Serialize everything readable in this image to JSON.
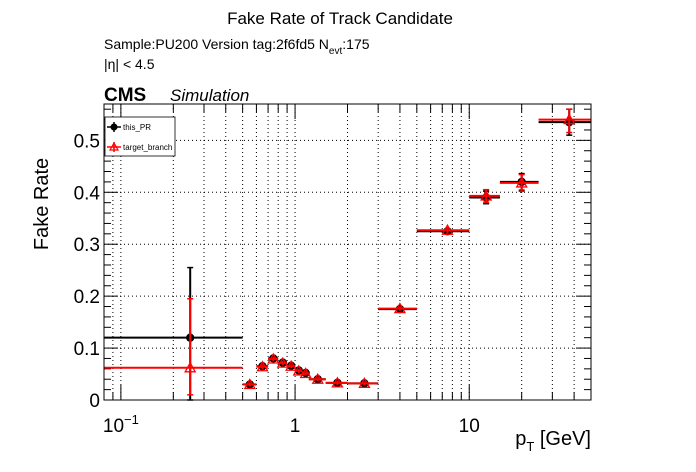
{
  "header": {
    "title": "Fake Rate of Track Candidate",
    "sample_line": "Sample:PU200   Version tag:2f6fd5  N",
    "nevt_sub": "evt",
    "nevt_value": ":175",
    "eta_cut": "|η| < 4.5",
    "cms": "CMS",
    "simulation": "Simulation"
  },
  "chart_data": {
    "type": "scatter",
    "xlabel": "p",
    "xlabel_sub": "T",
    "xlabel_unit": " [GeV]",
    "ylabel": "Fake Rate",
    "xscale": "log",
    "xlim": [
      0.08,
      50
    ],
    "ylim": [
      0,
      0.57
    ],
    "grid": true,
    "legend_position": "top-left",
    "xticks": [
      {
        "value": 0.1,
        "base": "10",
        "exp": "−1"
      },
      {
        "value": 1,
        "base": "1",
        "exp": ""
      },
      {
        "value": 10,
        "base": "10",
        "exp": ""
      }
    ],
    "yticks": [
      {
        "value": 0,
        "label": "0"
      },
      {
        "value": 0.1,
        "label": "0.1"
      },
      {
        "value": 0.2,
        "label": "0.2"
      },
      {
        "value": 0.3,
        "label": "0.3"
      },
      {
        "value": 0.4,
        "label": "0.4"
      },
      {
        "value": 0.5,
        "label": "0.5"
      }
    ],
    "series": [
      {
        "name": "this_PR",
        "color": "#000000",
        "marker": "circle",
        "points": [
          {
            "x": 0.25,
            "xlo": 0.0,
            "xhi": 0.5,
            "y": 0.12,
            "ylo": 0.0,
            "yhi": 0.255
          },
          {
            "x": 0.55,
            "xlo": 0.5,
            "xhi": 0.6,
            "y": 0.03,
            "ylo": 0.026,
            "yhi": 0.034
          },
          {
            "x": 0.65,
            "xlo": 0.6,
            "xhi": 0.7,
            "y": 0.065,
            "ylo": 0.06,
            "yhi": 0.07
          },
          {
            "x": 0.75,
            "xlo": 0.7,
            "xhi": 0.8,
            "y": 0.08,
            "ylo": 0.076,
            "yhi": 0.084
          },
          {
            "x": 0.85,
            "xlo": 0.8,
            "xhi": 0.9,
            "y": 0.072,
            "ylo": 0.068,
            "yhi": 0.076
          },
          {
            "x": 0.95,
            "xlo": 0.9,
            "xhi": 1.0,
            "y": 0.066,
            "ylo": 0.062,
            "yhi": 0.07
          },
          {
            "x": 1.05,
            "xlo": 1.0,
            "xhi": 1.1,
            "y": 0.057,
            "ylo": 0.053,
            "yhi": 0.061
          },
          {
            "x": 1.15,
            "xlo": 1.1,
            "xhi": 1.2,
            "y": 0.052,
            "ylo": 0.048,
            "yhi": 0.056
          },
          {
            "x": 1.35,
            "xlo": 1.2,
            "xhi": 1.5,
            "y": 0.04,
            "ylo": 0.036,
            "yhi": 0.044
          },
          {
            "x": 1.75,
            "xlo": 1.5,
            "xhi": 2.0,
            "y": 0.033,
            "ylo": 0.029,
            "yhi": 0.037
          },
          {
            "x": 2.5,
            "xlo": 2.0,
            "xhi": 3.0,
            "y": 0.032,
            "ylo": 0.028,
            "yhi": 0.036
          },
          {
            "x": 4.0,
            "xlo": 3.0,
            "xhi": 5.0,
            "y": 0.175,
            "ylo": 0.171,
            "yhi": 0.179
          },
          {
            "x": 7.5,
            "xlo": 5.0,
            "xhi": 10.0,
            "y": 0.325,
            "ylo": 0.319,
            "yhi": 0.331
          },
          {
            "x": 12.5,
            "xlo": 10.0,
            "xhi": 15.0,
            "y": 0.39,
            "ylo": 0.378,
            "yhi": 0.402
          },
          {
            "x": 20.0,
            "xlo": 15.0,
            "xhi": 25.0,
            "y": 0.42,
            "ylo": 0.404,
            "yhi": 0.436
          },
          {
            "x": 37.5,
            "xlo": 25.0,
            "xhi": 50.0,
            "y": 0.535,
            "ylo": 0.51,
            "yhi": 0.56
          }
        ]
      },
      {
        "name": "target_branch",
        "color": "#ff0000",
        "marker": "triangle-open",
        "points": [
          {
            "x": 0.25,
            "xlo": 0.0,
            "xhi": 0.5,
            "y": 0.062,
            "ylo": 0.01,
            "yhi": 0.195
          },
          {
            "x": 0.55,
            "xlo": 0.5,
            "xhi": 0.6,
            "y": 0.03,
            "ylo": 0.026,
            "yhi": 0.034
          },
          {
            "x": 0.65,
            "xlo": 0.6,
            "xhi": 0.7,
            "y": 0.064,
            "ylo": 0.059,
            "yhi": 0.069
          },
          {
            "x": 0.75,
            "xlo": 0.7,
            "xhi": 0.8,
            "y": 0.079,
            "ylo": 0.075,
            "yhi": 0.083
          },
          {
            "x": 0.85,
            "xlo": 0.8,
            "xhi": 0.9,
            "y": 0.071,
            "ylo": 0.067,
            "yhi": 0.075
          },
          {
            "x": 0.95,
            "xlo": 0.9,
            "xhi": 1.0,
            "y": 0.065,
            "ylo": 0.061,
            "yhi": 0.069
          },
          {
            "x": 1.05,
            "xlo": 1.0,
            "xhi": 1.1,
            "y": 0.056,
            "ylo": 0.052,
            "yhi": 0.06
          },
          {
            "x": 1.15,
            "xlo": 1.1,
            "xhi": 1.2,
            "y": 0.051,
            "ylo": 0.047,
            "yhi": 0.055
          },
          {
            "x": 1.35,
            "xlo": 1.2,
            "xhi": 1.5,
            "y": 0.04,
            "ylo": 0.036,
            "yhi": 0.044
          },
          {
            "x": 1.75,
            "xlo": 1.5,
            "xhi": 2.0,
            "y": 0.033,
            "ylo": 0.029,
            "yhi": 0.037
          },
          {
            "x": 2.5,
            "xlo": 2.0,
            "xhi": 3.0,
            "y": 0.032,
            "ylo": 0.028,
            "yhi": 0.036
          },
          {
            "x": 4.0,
            "xlo": 3.0,
            "xhi": 5.0,
            "y": 0.176,
            "ylo": 0.172,
            "yhi": 0.18
          },
          {
            "x": 7.5,
            "xlo": 5.0,
            "xhi": 10.0,
            "y": 0.327,
            "ylo": 0.321,
            "yhi": 0.333
          },
          {
            "x": 12.5,
            "xlo": 10.0,
            "xhi": 15.0,
            "y": 0.393,
            "ylo": 0.381,
            "yhi": 0.405
          },
          {
            "x": 20.0,
            "xlo": 15.0,
            "xhi": 25.0,
            "y": 0.418,
            "ylo": 0.402,
            "yhi": 0.434
          },
          {
            "x": 37.5,
            "xlo": 25.0,
            "xhi": 50.0,
            "y": 0.54,
            "ylo": 0.515,
            "yhi": 0.56
          }
        ]
      }
    ]
  }
}
